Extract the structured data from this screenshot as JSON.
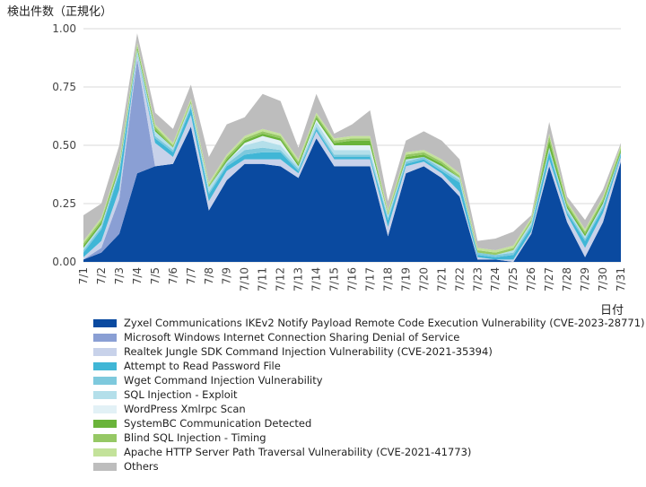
{
  "chart_data": {
    "type": "area",
    "stacked": true,
    "ylabel": "検出件数（正規化）",
    "xlabel": "日付",
    "ylim": [
      0,
      1.0
    ],
    "yticks": [
      "0.00",
      "0.25",
      "0.50",
      "0.75",
      "1.00"
    ],
    "grid": "horizontal",
    "legend_position": "bottom",
    "categories": [
      "7/1",
      "7/2",
      "7/3",
      "7/4",
      "7/5",
      "7/6",
      "7/7",
      "7/8",
      "7/9",
      "7/10",
      "7/11",
      "7/12",
      "7/13",
      "7/14",
      "7/15",
      "7/16",
      "7/17",
      "7/18",
      "7/19",
      "7/20",
      "7/21",
      "7/22",
      "7/23",
      "7/24",
      "7/25",
      "7/26",
      "7/27",
      "7/28",
      "7/29",
      "7/30",
      "7/31"
    ],
    "series": [
      {
        "name": "Zyxel Communications IKEv2 Notify Payload Remote Code Execution Vulnerability (CVE-2023-28771)",
        "color": "#0a4aa0",
        "values": [
          0.01,
          0.04,
          0.12,
          0.38,
          0.41,
          0.42,
          0.58,
          0.22,
          0.35,
          0.42,
          0.42,
          0.41,
          0.36,
          0.53,
          0.41,
          0.41,
          0.41,
          0.11,
          0.38,
          0.41,
          0.36,
          0.28,
          0.01,
          0.01,
          0.0,
          0.12,
          0.41,
          0.17,
          0.02,
          0.17,
          0.43
        ]
      },
      {
        "name": "Microsoft Windows Internet Connection Sharing Denial of Service",
        "color": "#8a9fd4",
        "values": [
          0.0,
          0.02,
          0.15,
          0.49,
          0.0,
          0.0,
          0.0,
          0.0,
          0.0,
          0.0,
          0.0,
          0.0,
          0.0,
          0.0,
          0.0,
          0.0,
          0.0,
          0.0,
          0.0,
          0.0,
          0.0,
          0.0,
          0.0,
          0.0,
          0.0,
          0.0,
          0.0,
          0.0,
          0.0,
          0.0,
          0.0
        ]
      },
      {
        "name": "Realtek Jungle SDK Command Injection Vulnerability (CVE-2021-35394)",
        "color": "#c8d2ea",
        "values": [
          0.01,
          0.03,
          0.04,
          0.02,
          0.1,
          0.03,
          0.05,
          0.04,
          0.04,
          0.02,
          0.02,
          0.03,
          0.02,
          0.03,
          0.03,
          0.03,
          0.03,
          0.04,
          0.03,
          0.02,
          0.02,
          0.02,
          0.01,
          0.0,
          0.01,
          0.01,
          0.03,
          0.03,
          0.04,
          0.04,
          0.02
        ]
      },
      {
        "name": "Attempt to Read Password File",
        "color": "#40b6d6",
        "values": [
          0.02,
          0.05,
          0.07,
          0.0,
          0.02,
          0.02,
          0.03,
          0.03,
          0.02,
          0.02,
          0.03,
          0.03,
          0.01,
          0.01,
          0.01,
          0.01,
          0.01,
          0.03,
          0.01,
          0.01,
          0.01,
          0.04,
          0.01,
          0.01,
          0.02,
          0.02,
          0.03,
          0.01,
          0.03,
          0.02,
          0.01
        ]
      },
      {
        "name": "Wget Command Injection Vulnerability",
        "color": "#7ec9dd",
        "values": [
          0.01,
          0.01,
          0.01,
          0.01,
          0.01,
          0.01,
          0.01,
          0.01,
          0.01,
          0.02,
          0.02,
          0.01,
          0.01,
          0.01,
          0.01,
          0.01,
          0.01,
          0.01,
          0.01,
          0.01,
          0.01,
          0.01,
          0.01,
          0.01,
          0.01,
          0.01,
          0.01,
          0.01,
          0.01,
          0.01,
          0.01
        ]
      },
      {
        "name": "SQL Injection - Exploit",
        "color": "#b4dfea",
        "values": [
          0.01,
          0.01,
          0.01,
          0.01,
          0.02,
          0.01,
          0.01,
          0.02,
          0.01,
          0.02,
          0.03,
          0.02,
          0.01,
          0.02,
          0.02,
          0.02,
          0.02,
          0.01,
          0.01,
          0.0,
          0.01,
          0.01,
          0.0,
          0.0,
          0.01,
          0.01,
          0.01,
          0.01,
          0.01,
          0.01,
          0.0
        ]
      },
      {
        "name": "WordPress Xmlrpc Scan",
        "color": "#e2f1f6",
        "values": [
          0.0,
          0.0,
          0.0,
          0.0,
          0.0,
          0.0,
          0.0,
          0.0,
          0.0,
          0.01,
          0.02,
          0.02,
          0.0,
          0.01,
          0.02,
          0.02,
          0.02,
          0.0,
          0.0,
          0.0,
          0.0,
          0.0,
          0.0,
          0.0,
          0.0,
          0.0,
          0.0,
          0.0,
          0.0,
          0.0,
          0.0
        ]
      },
      {
        "name": "SystemBC Communication Detected",
        "color": "#6ab43a",
        "values": [
          0.01,
          0.01,
          0.01,
          0.01,
          0.01,
          0.0,
          0.0,
          0.0,
          0.01,
          0.01,
          0.01,
          0.01,
          0.01,
          0.01,
          0.01,
          0.02,
          0.02,
          0.0,
          0.01,
          0.01,
          0.01,
          0.0,
          0.0,
          0.0,
          0.0,
          0.0,
          0.03,
          0.01,
          0.01,
          0.01,
          0.01
        ]
      },
      {
        "name": "Blind SQL Injection - Timing",
        "color": "#96c865",
        "values": [
          0.01,
          0.01,
          0.01,
          0.01,
          0.01,
          0.01,
          0.01,
          0.01,
          0.01,
          0.01,
          0.01,
          0.01,
          0.01,
          0.01,
          0.01,
          0.01,
          0.01,
          0.01,
          0.01,
          0.01,
          0.01,
          0.01,
          0.01,
          0.01,
          0.01,
          0.01,
          0.02,
          0.01,
          0.01,
          0.01,
          0.01
        ]
      },
      {
        "name": "Apache HTTP Server Path Traversal Vulnerability (CVE-2021-41773)",
        "color": "#c3e29a",
        "values": [
          0.01,
          0.01,
          0.01,
          0.01,
          0.01,
          0.01,
          0.01,
          0.01,
          0.01,
          0.01,
          0.01,
          0.01,
          0.01,
          0.01,
          0.01,
          0.01,
          0.01,
          0.01,
          0.01,
          0.01,
          0.01,
          0.01,
          0.01,
          0.01,
          0.01,
          0.01,
          0.01,
          0.01,
          0.01,
          0.01,
          0.01
        ]
      },
      {
        "name": "Others",
        "color": "#bdbdbd",
        "values": [
          0.11,
          0.06,
          0.07,
          0.04,
          0.05,
          0.06,
          0.06,
          0.11,
          0.13,
          0.08,
          0.15,
          0.14,
          0.05,
          0.08,
          0.02,
          0.05,
          0.11,
          0.04,
          0.05,
          0.08,
          0.08,
          0.06,
          0.03,
          0.05,
          0.06,
          0.01,
          0.05,
          0.02,
          0.04,
          0.03,
          0.01
        ]
      }
    ]
  }
}
